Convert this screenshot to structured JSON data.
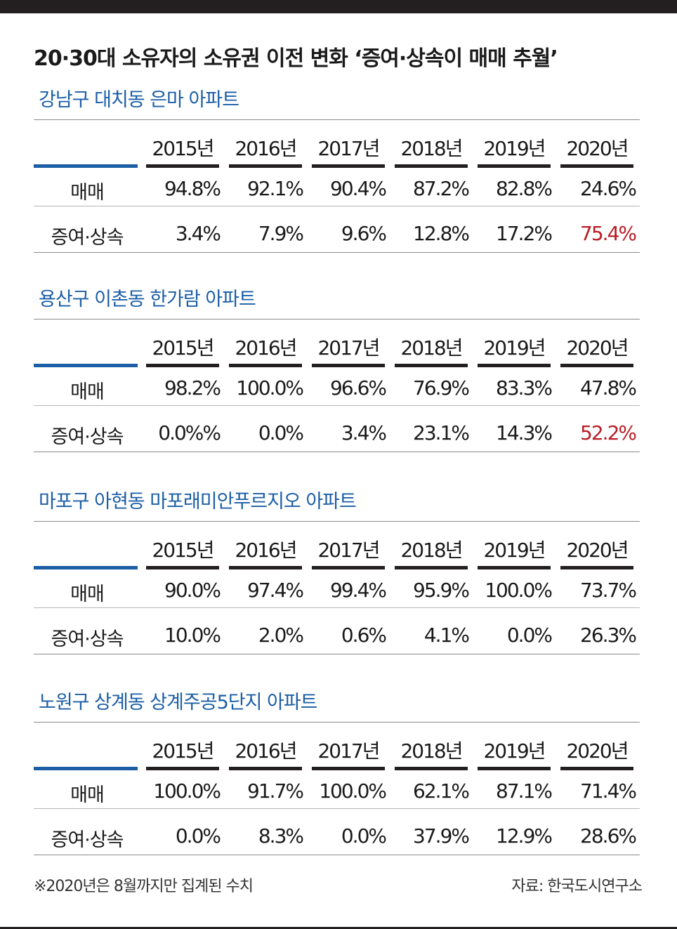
{
  "title": "20·30대 소유자의 소유권 이전 변화 ‘증여·상속이 매매 추월’",
  "chart_data": {
    "type": "table",
    "columns": [
      "2015년",
      "2016년",
      "2017년",
      "2018년",
      "2019년",
      "2020년"
    ],
    "row_labels": [
      "매매",
      "증여·상속"
    ],
    "highlight_color": "#b81d24",
    "sections": [
      {
        "title": "강남구 대치동 은마 아파트",
        "rows": [
          [
            "94.8%",
            "92.1%",
            "90.4%",
            "87.2%",
            "82.8%",
            "24.6%"
          ],
          [
            "3.4%",
            "7.9%",
            "9.6%",
            "12.8%",
            "17.2%",
            "75.4%"
          ]
        ],
        "highlight": [
          [
            1,
            5
          ]
        ]
      },
      {
        "title": "용산구 이촌동 한가람 아파트",
        "rows": [
          [
            "98.2%",
            "100.0%",
            "96.6%",
            "76.9%",
            "83.3%",
            "47.8%"
          ],
          [
            "0.0%%",
            "0.0%",
            "3.4%",
            "23.1%",
            "14.3%",
            "52.2%"
          ]
        ],
        "highlight": [
          [
            1,
            5
          ]
        ]
      },
      {
        "title": "마포구 아현동 마포래미안푸르지오 아파트",
        "rows": [
          [
            "90.0%",
            "97.4%",
            "99.4%",
            "95.9%",
            "100.0%",
            "73.7%"
          ],
          [
            "10.0%",
            "2.0%",
            "0.6%",
            "4.1%",
            "0.0%",
            "26.3%"
          ]
        ],
        "highlight": []
      },
      {
        "title": "노원구 상계동 상계주공5단지 아파트",
        "rows": [
          [
            "100.0%",
            "91.7%",
            "100.0%",
            "62.1%",
            "87.1%",
            "71.4%"
          ],
          [
            "0.0%",
            "8.3%",
            "0.0%",
            "37.9%",
            "12.9%",
            "28.6%"
          ]
        ],
        "highlight": []
      }
    ]
  },
  "footnote": "※2020년은 8월까지만 집계된 수치",
  "source": "자료: 한국도시연구소"
}
